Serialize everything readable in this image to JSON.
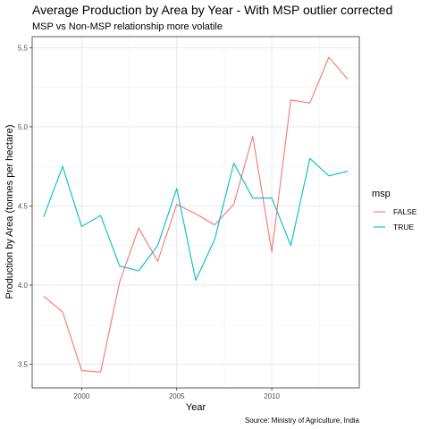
{
  "chart_data": {
    "type": "line",
    "title": "Average Production by Area by Year - With MSP outlier corrected",
    "subtitle": "MSP vs Non-MSP relationship more volatile",
    "xlabel": "Year",
    "ylabel": "Production by Area (tonnes per hectare)",
    "caption": "Source: Ministry of Agriculture, India",
    "xlim": [
      1997.4,
      2014.6
    ],
    "ylim": [
      3.35,
      5.57
    ],
    "x_ticks": [
      2000,
      2005,
      2010
    ],
    "x_tick_labels": [
      "2000",
      "2005",
      "2010"
    ],
    "y_ticks": [
      3.5,
      4.0,
      4.5,
      5.0,
      5.5
    ],
    "y_tick_labels": [
      "3.5",
      "4.0",
      "4.5",
      "5.0",
      "5.5"
    ],
    "grid": true,
    "legend": {
      "title": "msp",
      "position": "right"
    },
    "x": [
      1998,
      1999,
      2000,
      2001,
      2002,
      2003,
      2004,
      2005,
      2006,
      2007,
      2008,
      2009,
      2010,
      2011,
      2012,
      2013,
      2014
    ],
    "series": [
      {
        "name": "FALSE",
        "color": "#F8766D",
        "values": [
          3.93,
          3.83,
          3.46,
          3.45,
          4.02,
          4.36,
          4.15,
          4.51,
          4.45,
          4.38,
          4.51,
          4.94,
          4.21,
          5.17,
          5.15,
          5.44,
          5.3
        ]
      },
      {
        "name": "TRUE",
        "color": "#00BFC4",
        "values": [
          4.43,
          4.75,
          4.37,
          4.44,
          4.12,
          4.09,
          4.25,
          4.61,
          4.03,
          4.29,
          4.77,
          4.55,
          4.55,
          4.25,
          4.8,
          4.69,
          4.72
        ]
      }
    ]
  }
}
